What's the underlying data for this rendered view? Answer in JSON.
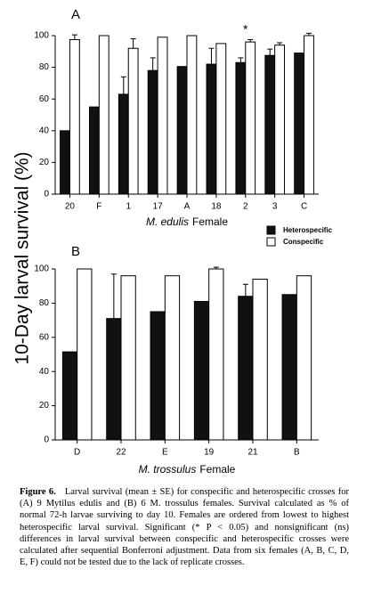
{
  "ylabel": "10-Day larval survival (%)",
  "chart_data": [
    {
      "type": "bar",
      "panel": "A",
      "categories": [
        "20",
        "F",
        "1",
        "17",
        "A",
        "18",
        "2",
        "3",
        "C"
      ],
      "xlabel": [
        "M. edulis",
        "Female"
      ],
      "series": [
        {
          "name": "Heterospecific",
          "color": "#111111",
          "values": [
            40,
            55,
            63,
            78,
            80.5,
            82,
            83,
            87.5,
            89
          ],
          "errors": [
            null,
            null,
            11,
            8,
            null,
            10,
            3,
            4,
            null
          ]
        },
        {
          "name": "Conspecific",
          "color": "#ffffff",
          "values": [
            97.5,
            100,
            92,
            99,
            100,
            95,
            96,
            94,
            100
          ],
          "errors": [
            3,
            null,
            6,
            null,
            null,
            null,
            1.5,
            1.5,
            1.5
          ]
        }
      ],
      "annotations": [
        {
          "text": "*",
          "category": "2"
        }
      ],
      "ylim": [
        0,
        100
      ],
      "yticks": [
        0,
        20,
        40,
        60,
        80,
        100
      ]
    },
    {
      "type": "bar",
      "panel": "B",
      "categories": [
        "D",
        "22",
        "E",
        "19",
        "21",
        "B"
      ],
      "xlabel": [
        "M. trossulus",
        "Female"
      ],
      "series": [
        {
          "color": "#111111",
          "values": [
            51.5,
            71,
            75,
            81,
            84,
            85
          ],
          "errors": [
            null,
            26,
            null,
            null,
            7,
            null
          ]
        },
        {
          "color": "#ffffff",
          "values": [
            100,
            96,
            96,
            100,
            94,
            96
          ],
          "errors": [
            null,
            null,
            null,
            1,
            null,
            null
          ]
        }
      ],
      "ylim": [
        0,
        100
      ],
      "yticks": [
        0,
        20,
        40,
        60,
        80,
        100
      ]
    }
  ],
  "caption": {
    "label": "Figure 6.",
    "text": "Larval survival (mean ± SE) for conspecific and heterospecific crosses for (A) 9 Mytilus edulis and (B) 6 M. trossulus females. Survival calculated as % of normal 72-h larvae surviving to day 10. Females are ordered from lowest to highest heterospecific larval survival. Significant (* P < 0.05) and nonsignificant (ns) differences in larval survival between conspecific and heterospecific crosses were calculated after sequential Bonferroni adjustment. Data from six females (A, B, C, D, E, F) could not be tested due to the lack of replicate crosses."
  }
}
